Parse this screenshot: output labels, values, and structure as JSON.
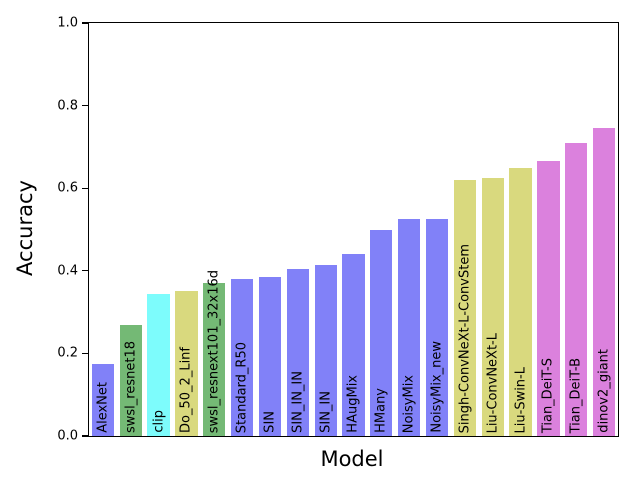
{
  "chart_data": {
    "type": "bar",
    "title": "",
    "xlabel": "Model",
    "ylabel": "Accuracy",
    "ylim": [
      0.0,
      1.0
    ],
    "yticks": [
      "0.0",
      "0.2",
      "0.4",
      "0.6",
      "0.8",
      "1.0"
    ],
    "grid": false,
    "legend": null,
    "bar_label_rotation_deg": 90,
    "categories": [
      "AlexNet",
      "swsl_resnet18",
      "clip",
      "Do_50_2_Linf",
      "swsl_resnext101_32x16d",
      "Standard_R50",
      "SIN",
      "SIN_IN_IN",
      "SIN_IN",
      "HAugMix",
      "HMany",
      "NoisyMix",
      "NoisyMix_new",
      "Singh-ConvNeXt-L-ConvStem",
      "Liu-ConvNeXt-L",
      "Liu-Swin-L",
      "Tian_DeiT-S",
      "Tian_DeiT-B",
      "dinov2_giant"
    ],
    "values": [
      0.175,
      0.27,
      0.345,
      0.35,
      0.37,
      0.38,
      0.385,
      0.405,
      0.415,
      0.44,
      0.5,
      0.525,
      0.525,
      0.62,
      0.625,
      0.65,
      0.665,
      0.71,
      0.745
    ],
    "colors": [
      "#8181f8",
      "#74b975",
      "#7dfcfc",
      "#d9d97e",
      "#74b975",
      "#8181f8",
      "#8181f8",
      "#8181f8",
      "#8181f8",
      "#8181f8",
      "#8181f8",
      "#8181f8",
      "#8181f8",
      "#d9d97e",
      "#d9d97e",
      "#d9d97e",
      "#db81dd",
      "#db81dd",
      "#db81dd"
    ],
    "axis_color": "#000000",
    "background_color": "#ffffff"
  }
}
